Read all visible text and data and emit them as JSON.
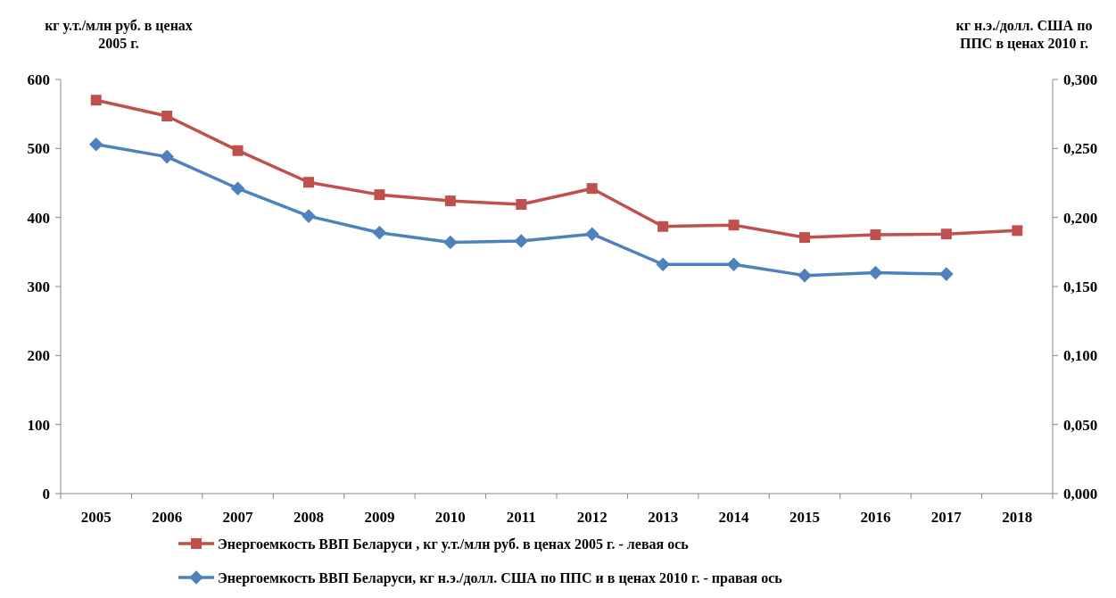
{
  "chart_data": {
    "type": "line",
    "ylabel": "кг у.т./млн руб. в ценах 2005 г.",
    "y2label": "кг н.э./долл. США по ППС в ценах 2010 г.",
    "categories": [
      "2005",
      "2006",
      "2007",
      "2008",
      "2009",
      "2010",
      "2011",
      "2012",
      "2013",
      "2014",
      "2015",
      "2016",
      "2017",
      "2018"
    ],
    "series": [
      {
        "name": "Энергоемкость ВВП Беларуси , кг у.т./млн руб. в ценах 2005 г. - левая ось",
        "color": "#c0504d",
        "marker": "square",
        "values": [
          570,
          547,
          497,
          451,
          433,
          424,
          419,
          442,
          387,
          389,
          371,
          375,
          376,
          381
        ]
      },
      {
        "name": "Энергоемкость ВВП Беларуси, кг н.э./долл. США по ППС и в ценах 2010 г. - правая ось",
        "color": "#4f81bd",
        "marker": "diamond",
        "axis": "y2",
        "values": [
          0.253,
          0.244,
          0.221,
          0.201,
          0.189,
          0.182,
          0.183,
          0.188,
          0.166,
          0.166,
          0.158,
          0.16,
          0.159,
          null
        ]
      }
    ],
    "ylim": [
      0,
      600
    ],
    "yticks": [
      0,
      100,
      200,
      300,
      400,
      500,
      600
    ],
    "y2lim": [
      0,
      0.3
    ],
    "y2ticks": [
      {
        "value": 0,
        "label": "0,000"
      },
      {
        "value": 0.05,
        "label": "0,050"
      },
      {
        "value": 0.1,
        "label": "0,100"
      },
      {
        "value": 0.15,
        "label": "0,150"
      },
      {
        "value": 0.2,
        "label": "0,200"
      },
      {
        "value": 0.25,
        "label": "0,250"
      },
      {
        "value": 0.3,
        "label": "0,300"
      }
    ],
    "grid": false,
    "legend": "bottom"
  }
}
